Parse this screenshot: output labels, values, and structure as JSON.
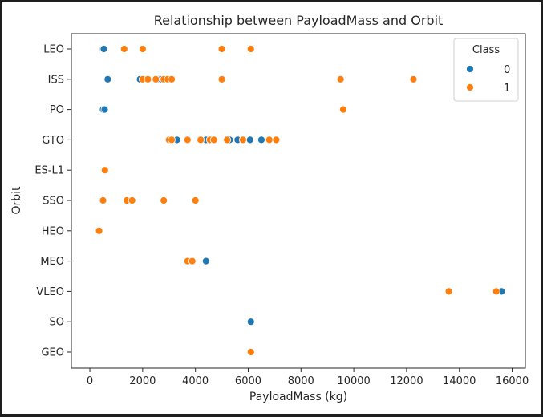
{
  "chart_data": {
    "type": "scatter",
    "title": "Relationship between PayloadMass and Orbit",
    "xlabel": "PayloadMass (kg)",
    "ylabel": "Orbit",
    "xlim": [
      -700,
      16500
    ],
    "xticks": [
      0,
      2000,
      4000,
      6000,
      8000,
      10000,
      12000,
      14000,
      16000
    ],
    "categories": [
      "LEO",
      "ISS",
      "PO",
      "GTO",
      "ES-L1",
      "SSO",
      "HEO",
      "MEO",
      "VLEO",
      "SO",
      "GEO"
    ],
    "grid": false,
    "legend": {
      "title": "Class",
      "placement": "top-right",
      "entries": [
        {
          "label": "0",
          "color": "#1f77b4"
        },
        {
          "label": "1",
          "color": "#ff7f0e"
        }
      ]
    },
    "series": [
      {
        "name": "0",
        "color": "#1f77b4",
        "points": [
          {
            "x": 500,
            "y": "LEO"
          },
          {
            "x": 530,
            "y": "LEO"
          },
          {
            "x": 677,
            "y": "ISS"
          },
          {
            "x": 1900,
            "y": "ISS"
          },
          {
            "x": 2600,
            "y": "ISS"
          },
          {
            "x": 2700,
            "y": "ISS"
          },
          {
            "x": 500,
            "y": "PO"
          },
          {
            "x": 560,
            "y": "PO"
          },
          {
            "x": 3300,
            "y": "GTO"
          },
          {
            "x": 4400,
            "y": "GTO"
          },
          {
            "x": 4600,
            "y": "GTO"
          },
          {
            "x": 5300,
            "y": "GTO"
          },
          {
            "x": 5600,
            "y": "GTO"
          },
          {
            "x": 6070,
            "y": "GTO"
          },
          {
            "x": 6500,
            "y": "GTO"
          },
          {
            "x": 4400,
            "y": "MEO"
          },
          {
            "x": 15600,
            "y": "VLEO"
          },
          {
            "x": 6100,
            "y": "SO"
          }
        ]
      },
      {
        "name": "1",
        "color": "#ff7f0e",
        "points": [
          {
            "x": 1300,
            "y": "LEO"
          },
          {
            "x": 2000,
            "y": "LEO"
          },
          {
            "x": 5000,
            "y": "LEO"
          },
          {
            "x": 6100,
            "y": "LEO"
          },
          {
            "x": 2000,
            "y": "ISS"
          },
          {
            "x": 2200,
            "y": "ISS"
          },
          {
            "x": 2500,
            "y": "ISS"
          },
          {
            "x": 2800,
            "y": "ISS"
          },
          {
            "x": 2950,
            "y": "ISS"
          },
          {
            "x": 3100,
            "y": "ISS"
          },
          {
            "x": 5000,
            "y": "ISS"
          },
          {
            "x": 9500,
            "y": "ISS"
          },
          {
            "x": 12260,
            "y": "ISS"
          },
          {
            "x": 9600,
            "y": "PO"
          },
          {
            "x": 3000,
            "y": "GTO"
          },
          {
            "x": 3100,
            "y": "GTO"
          },
          {
            "x": 3700,
            "y": "GTO"
          },
          {
            "x": 4200,
            "y": "GTO"
          },
          {
            "x": 4550,
            "y": "GTO"
          },
          {
            "x": 4700,
            "y": "GTO"
          },
          {
            "x": 5200,
            "y": "GTO"
          },
          {
            "x": 5800,
            "y": "GTO"
          },
          {
            "x": 6800,
            "y": "GTO"
          },
          {
            "x": 7060,
            "y": "GTO"
          },
          {
            "x": 570,
            "y": "ES-L1"
          },
          {
            "x": 500,
            "y": "SSO"
          },
          {
            "x": 1400,
            "y": "SSO"
          },
          {
            "x": 1600,
            "y": "SSO"
          },
          {
            "x": 2800,
            "y": "SSO"
          },
          {
            "x": 4000,
            "y": "SSO"
          },
          {
            "x": 350,
            "y": "HEO"
          },
          {
            "x": 3700,
            "y": "MEO"
          },
          {
            "x": 3880,
            "y": "MEO"
          },
          {
            "x": 13600,
            "y": "VLEO"
          },
          {
            "x": 15400,
            "y": "VLEO"
          },
          {
            "x": 6100,
            "y": "GEO"
          }
        ]
      }
    ]
  }
}
